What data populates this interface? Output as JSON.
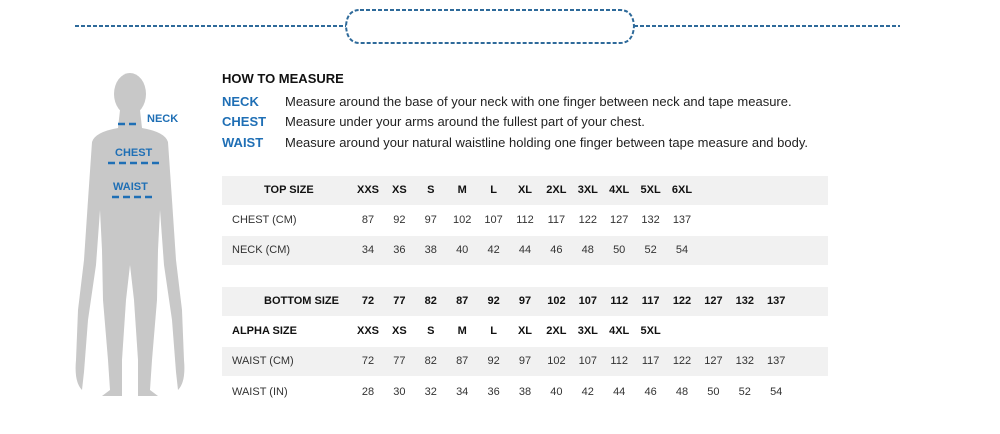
{
  "colors": {
    "accent": "#1f6fb5",
    "dash": "#2e6a9a",
    "figure": "#c8c8c8",
    "band": "#f1f1f1"
  },
  "figure": {
    "neck": "NECK",
    "chest": "CHEST",
    "waist": "WAIST"
  },
  "how_to": {
    "title": "HOW TO MEASURE",
    "items": [
      {
        "label": "NECK",
        "text": "Measure around the base of your neck with one finger between neck and tape measure."
      },
      {
        "label": "CHEST",
        "text": "Measure under your arms around the fullest part of your chest."
      },
      {
        "label": "WAIST",
        "text": "Measure around your natural waistline holding one finger between tape measure and body."
      }
    ]
  },
  "top_table": {
    "rows": [
      {
        "label": "TOP SIZE",
        "header": true,
        "band": true,
        "values": [
          "XXS",
          "XS",
          "S",
          "M",
          "L",
          "XL",
          "2XL",
          "3XL",
          "4XL",
          "5XL",
          "6XL"
        ]
      },
      {
        "label": "CHEST (CM)",
        "header": false,
        "band": false,
        "values": [
          "87",
          "92",
          "97",
          "102",
          "107",
          "112",
          "117",
          "122",
          "127",
          "132",
          "137"
        ]
      },
      {
        "label": "NECK (CM)",
        "header": false,
        "band": true,
        "values": [
          "34",
          "36",
          "38",
          "40",
          "42",
          "44",
          "46",
          "48",
          "50",
          "52",
          "54"
        ]
      }
    ]
  },
  "bottom_table": {
    "rows": [
      {
        "label": "BOTTOM  SIZE",
        "header": true,
        "band": true,
        "values": [
          "72",
          "77",
          "82",
          "87",
          "92",
          "97",
          "102",
          "107",
          "112",
          "117",
          "122",
          "127",
          "132",
          "137"
        ]
      },
      {
        "label": "ALPHA SIZE",
        "header": true,
        "band": false,
        "values": [
          "XXS",
          "XS",
          "S",
          "M",
          "L",
          "XL",
          "2XL",
          "3XL",
          "4XL",
          "5XL"
        ]
      },
      {
        "label": "WAIST (CM)",
        "header": false,
        "band": true,
        "values": [
          "72",
          "77",
          "82",
          "87",
          "92",
          "97",
          "102",
          "107",
          "112",
          "117",
          "122",
          "127",
          "132",
          "137"
        ]
      },
      {
        "label": "WAIST (IN)",
        "header": false,
        "band": false,
        "values": [
          "28",
          "30",
          "32",
          "34",
          "36",
          "38",
          "40",
          "42",
          "44",
          "46",
          "48",
          "50",
          "52",
          "54"
        ]
      }
    ]
  }
}
